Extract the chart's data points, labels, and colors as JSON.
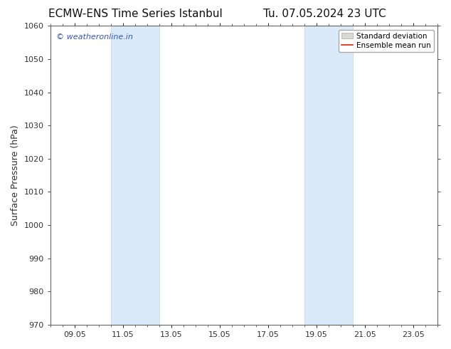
{
  "title_left": "ECMW-ENS Time Series Istanbul",
  "title_right": "Tu. 07.05.2024 23 UTC",
  "ylabel": "Surface Pressure (hPa)",
  "ylim": [
    970,
    1060
  ],
  "yticks": [
    970,
    980,
    990,
    1000,
    1010,
    1020,
    1030,
    1040,
    1050,
    1060
  ],
  "xtick_labels": [
    "09.05",
    "11.05",
    "13.05",
    "15.05",
    "17.05",
    "19.05",
    "21.05",
    "23.05"
  ],
  "xtick_positions": [
    1.0,
    3.0,
    5.0,
    7.0,
    9.0,
    11.0,
    13.0,
    15.0
  ],
  "xlim_min": 0.0,
  "xlim_max": 16.0,
  "shaded_regions": [
    {
      "x_start": 2.5,
      "x_end": 4.5
    },
    {
      "x_start": 10.5,
      "x_end": 12.5
    }
  ],
  "shaded_color": "#daeaf8",
  "shaded_edge_color": "#c0d8ee",
  "watermark_text": "© weatheronline.in",
  "watermark_color": "#3355cc",
  "legend_std_color": "#d8d8d8",
  "legend_mean_color": "#dd2200",
  "title_fontsize": 11,
  "ylabel_fontsize": 9,
  "tick_fontsize": 8,
  "watermark_fontsize": 8,
  "legend_fontsize": 7.5,
  "background_color": "#ffffff",
  "spine_color": "#555555",
  "tick_color": "#333333"
}
